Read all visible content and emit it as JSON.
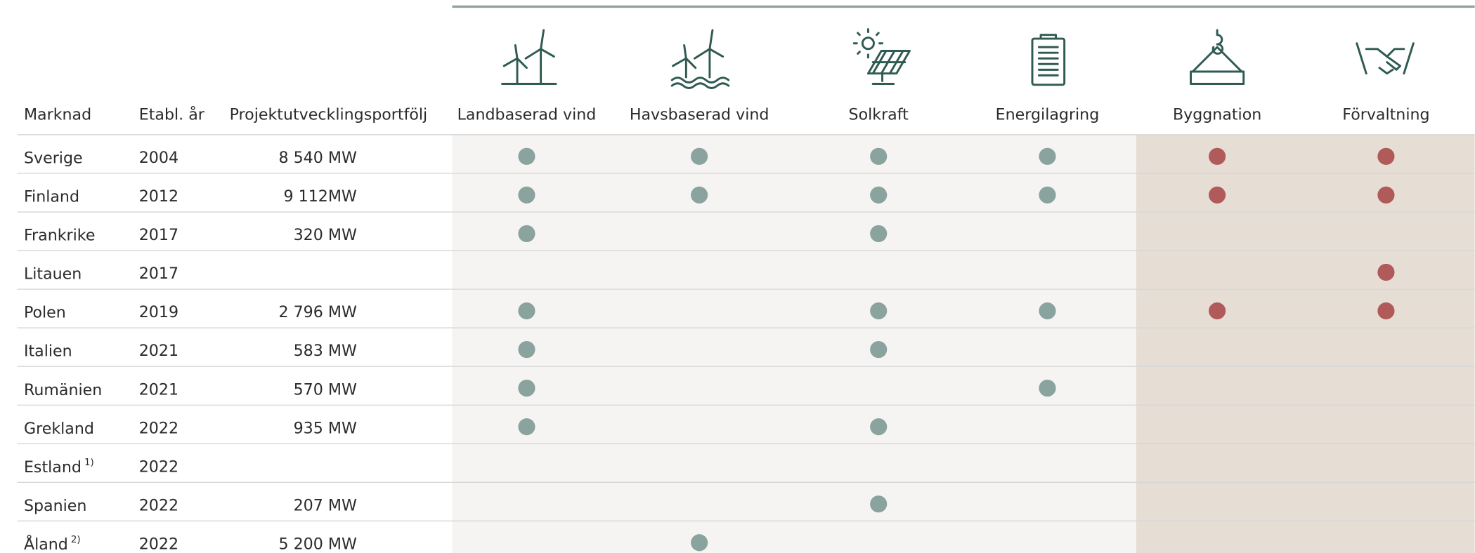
{
  "table": {
    "columns": [
      "Marknad",
      "Etabl. år",
      "Projektutvecklingsportfölj",
      "Landbaserad vind",
      "Havsbaserad vind",
      "Solkraft",
      "Energilagring",
      "Byggnation",
      "Förvaltning"
    ],
    "rows": [
      {
        "market": "Sverige",
        "year": 2004,
        "portfolio": "8 540 MW",
        "activities": [
          true,
          true,
          true,
          true,
          true,
          true
        ]
      },
      {
        "market": "Finland",
        "year": 2012,
        "portfolio": "9 112MW",
        "activities": [
          true,
          true,
          true,
          true,
          true,
          true
        ]
      },
      {
        "market": "Frankrike",
        "year": 2017,
        "portfolio": "320 MW",
        "activities": [
          true,
          false,
          true,
          false,
          false,
          false
        ]
      },
      {
        "market": "Litauen",
        "year": 2017,
        "activities": [
          false,
          false,
          false,
          false,
          false,
          true
        ]
      },
      {
        "market": "Polen",
        "year": 2019,
        "portfolio": "2 796 MW",
        "activities": [
          true,
          false,
          true,
          true,
          true,
          true
        ]
      },
      {
        "market": "Italien",
        "year": 2021,
        "portfolio": "583 MW",
        "activities": [
          true,
          false,
          true,
          false,
          false,
          false
        ]
      },
      {
        "market": "Rumänien",
        "year": 2021,
        "portfolio": "570 MW",
        "activities": [
          true,
          false,
          false,
          true,
          false,
          false
        ]
      },
      {
        "market": "Grekland",
        "year": 2022,
        "portfolio": "935 MW",
        "activities": [
          true,
          false,
          true,
          false,
          false,
          false
        ]
      },
      {
        "market": "Estland",
        "note": "1)",
        "year": 2022,
        "activities": [
          false,
          false,
          false,
          false,
          false,
          false
        ]
      },
      {
        "market": "Spanien",
        "year": 2022,
        "portfolio": "207 MW",
        "activities": [
          false,
          false,
          true,
          false,
          false,
          false
        ]
      },
      {
        "market": "Åland",
        "note": "2)",
        "year": 2022,
        "portfolio": "5 200 MW",
        "activities": [
          false,
          true,
          false,
          false,
          false,
          false
        ]
      }
    ]
  }
}
